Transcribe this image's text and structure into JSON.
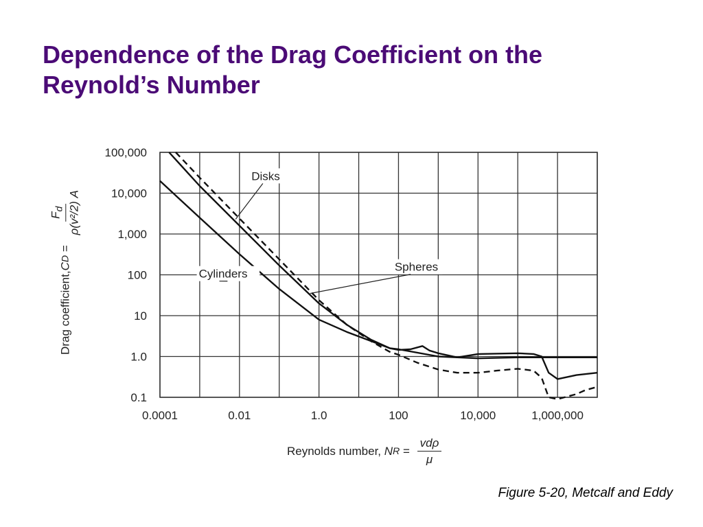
{
  "slide": {
    "title_line1": "Dependence of the Drag Coefficient on the",
    "title_line2": "Reynold’s Number",
    "caption": "Figure 5-20, Metcalf and Eddy",
    "title_color": "#4b0b76"
  },
  "chart_data": {
    "type": "line",
    "x_scale": "log",
    "y_scale": "log",
    "xlim": [
      0.0001,
      10000000
    ],
    "ylim": [
      0.1,
      100000
    ],
    "grid": true,
    "x_ticks": [
      {
        "value": 0.0001,
        "label": "0.0001"
      },
      {
        "value": 0.01,
        "label": "0.01"
      },
      {
        "value": 1,
        "label": "1.0"
      },
      {
        "value": 100,
        "label": "100"
      },
      {
        "value": 10000,
        "label": "10,000"
      },
      {
        "value": 1000000,
        "label": "1,000,000"
      }
    ],
    "y_ticks": [
      {
        "value": 100000,
        "label": "100,000"
      },
      {
        "value": 10000,
        "label": "10,000"
      },
      {
        "value": 1000,
        "label": "1,000"
      },
      {
        "value": 100,
        "label": "100"
      },
      {
        "value": 10,
        "label": "10"
      },
      {
        "value": 1,
        "label": "1.0"
      },
      {
        "value": 0.1,
        "label": "0.1"
      }
    ],
    "xlabel": {
      "prefix": "Reynolds number, ",
      "symbol": "N",
      "subscript": "R",
      "equals": " = ",
      "numerator": "vdρ",
      "denominator": "μ"
    },
    "ylabel": {
      "prefix": "Drag coefficient, ",
      "symbol": "C",
      "subscript": "D",
      "equals": " = ",
      "numerator": "F",
      "numerator_sub": "d",
      "denominator": "ρ(v²/2) A"
    },
    "series": [
      {
        "name": "Disks",
        "style": "solid",
        "points": [
          [
            0.00017,
            100000
          ],
          [
            0.001,
            15000
          ],
          [
            0.01,
            1600
          ],
          [
            0.1,
            170
          ],
          [
            1,
            20
          ],
          [
            5,
            6
          ],
          [
            20,
            2.6
          ],
          [
            60,
            1.6
          ],
          [
            100,
            1.45
          ],
          [
            200,
            1.5
          ],
          [
            400,
            1.8
          ],
          [
            600,
            1.4
          ],
          [
            1000,
            1.2
          ],
          [
            3000,
            0.95
          ],
          [
            10000,
            0.9
          ],
          [
            100000,
            0.95
          ],
          [
            1000000,
            0.95
          ],
          [
            10000000,
            0.95
          ]
        ]
      },
      {
        "name": "Spheres",
        "style": "dashed",
        "points": [
          [
            0.00025,
            100000
          ],
          [
            0.001,
            24000
          ],
          [
            0.01,
            2400
          ],
          [
            0.1,
            240
          ],
          [
            1,
            24
          ],
          [
            5,
            6
          ],
          [
            20,
            2.4
          ],
          [
            60,
            1.3
          ],
          [
            100,
            1.1
          ],
          [
            300,
            0.7
          ],
          [
            1000,
            0.48
          ],
          [
            3000,
            0.4
          ],
          [
            10000,
            0.4
          ],
          [
            30000,
            0.45
          ],
          [
            100000,
            0.5
          ],
          [
            250000,
            0.45
          ],
          [
            400000,
            0.3
          ],
          [
            600000,
            0.1
          ],
          [
            1000000,
            0.09
          ],
          [
            3000000,
            0.12
          ],
          [
            5000000,
            0.15
          ],
          [
            10000000,
            0.18
          ]
        ]
      },
      {
        "name": "Cylinders",
        "style": "solid",
        "points": [
          [
            0.0001,
            20000
          ],
          [
            0.001,
            2500
          ],
          [
            0.01,
            320
          ],
          [
            0.1,
            45
          ],
          [
            1,
            8
          ],
          [
            5,
            4
          ],
          [
            20,
            2.4
          ],
          [
            60,
            1.6
          ],
          [
            100,
            1.5
          ],
          [
            1000,
            1.0
          ],
          [
            3000,
            0.95
          ],
          [
            10000,
            1.15
          ],
          [
            100000,
            1.2
          ],
          [
            250000,
            1.15
          ],
          [
            400000,
            1.0
          ],
          [
            600000,
            0.4
          ],
          [
            1000000,
            0.28
          ],
          [
            3000000,
            0.35
          ],
          [
            10000000,
            0.4
          ]
        ]
      }
    ],
    "annotations": [
      {
        "text": "Disks",
        "x": 0.02,
        "y": 21000,
        "target_x": 0.008,
        "target_y": 2300
      },
      {
        "text": "Spheres",
        "x": 80,
        "y": 125,
        "target_x": 0.6,
        "target_y": 35
      },
      {
        "text": "Cylinders",
        "x": 0.00095,
        "y": 85,
        "target_x": 0.005,
        "target_y": 70
      }
    ]
  }
}
